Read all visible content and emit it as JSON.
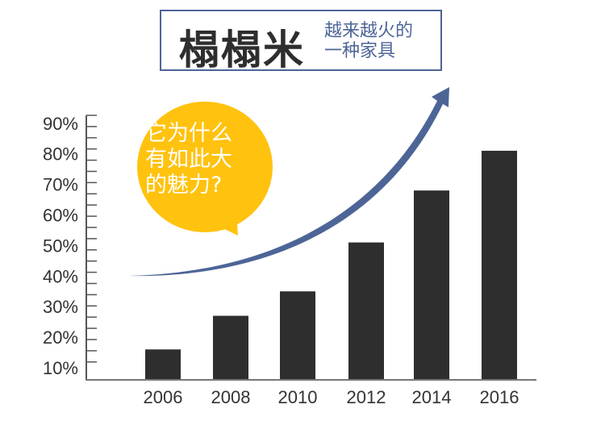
{
  "header": {
    "brand": "榻榻米",
    "slogan_line1": "越来越火的",
    "slogan_line2": "一种家具"
  },
  "callout": {
    "lines": [
      "它为什么",
      "有如此大",
      "的魅力?"
    ]
  },
  "colors": {
    "bar": "#2e2e2e",
    "arrow": "#4d6596",
    "bubble": "#ffc20e",
    "axis": "#555555"
  },
  "chart_data": {
    "type": "bar",
    "categories": [
      "2006",
      "2008",
      "2010",
      "2012",
      "2014",
      "2016"
    ],
    "values": [
      16,
      27,
      35,
      51,
      68,
      81
    ],
    "unit": "%",
    "ytick_labels": [
      "10%",
      "20%",
      "30%",
      "40%",
      "50%",
      "60%",
      "70%",
      "80%",
      "90%"
    ],
    "ylim": [
      7,
      94
    ],
    "grid": false,
    "trend_arrow": "upward curve"
  }
}
